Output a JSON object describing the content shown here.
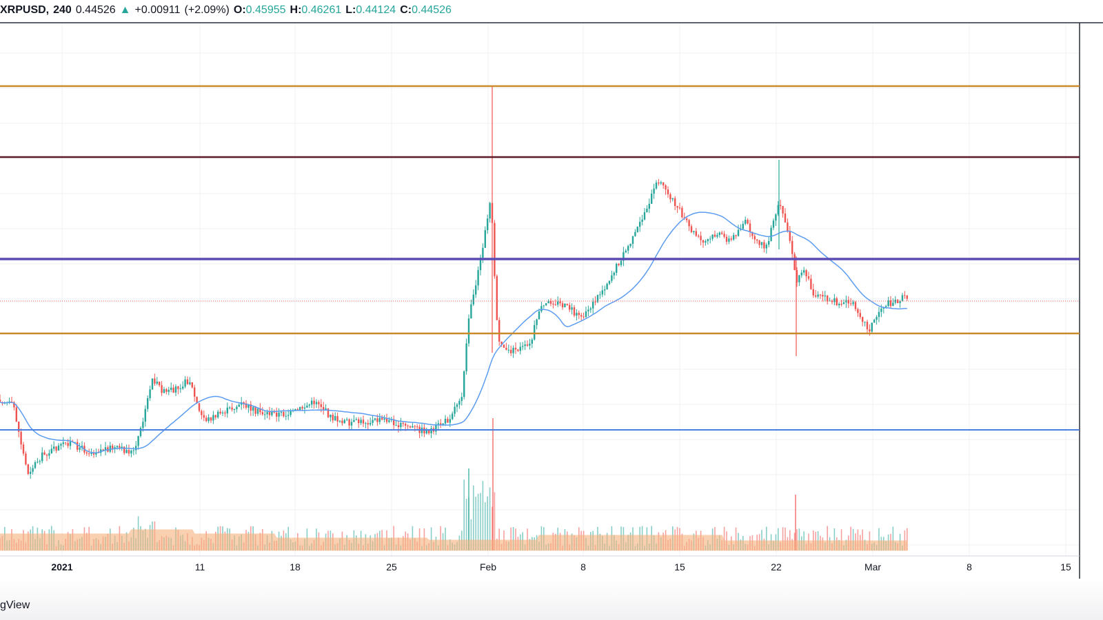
{
  "legend": {
    "symbol": "XRPUSD,",
    "interval": "240",
    "last": "0.44526",
    "change_arrow": "▲",
    "change": "+0.00911",
    "change_pct": "(+2.09%)",
    "open_label": "O:",
    "open": "0.45955",
    "high_label": "H:",
    "high": "0.46261",
    "low_label": "L:",
    "low": "0.44124",
    "close_label": "C:",
    "close": "0.44526"
  },
  "brand": "gView",
  "colors": {
    "up": "#26a69a",
    "down": "#ef5350",
    "ma": "#5b9cf0",
    "volume_area": "#f6b27d",
    "level_orange": "#c98a2a",
    "level_darkred": "#5c1a2a",
    "level_purple": "#5a4bb5",
    "level_blue": "#4a7fe0",
    "grid": "#eef0f3"
  },
  "chart_data": {
    "type": "candlestick",
    "symbol": "XRPUSD",
    "interval": "240",
    "ohlc_last": {
      "open": 0.45955,
      "high": 0.46261,
      "low": 0.44124,
      "close": 0.44526
    },
    "x_tick_labels": [
      "2021",
      "11",
      "18",
      "25",
      "Feb",
      "8",
      "15",
      "22",
      "Mar",
      "8",
      "15"
    ],
    "horizontal_levels": [
      {
        "color": "orange",
        "price_position": "top"
      },
      {
        "color": "dark-red",
        "price_position": "upper"
      },
      {
        "color": "purple",
        "price_position": "middle"
      },
      {
        "color": "orange",
        "price_position": "lower-middle"
      },
      {
        "color": "blue",
        "price_position": "lower"
      }
    ],
    "moving_average": true,
    "volume": true,
    "grid": true
  }
}
